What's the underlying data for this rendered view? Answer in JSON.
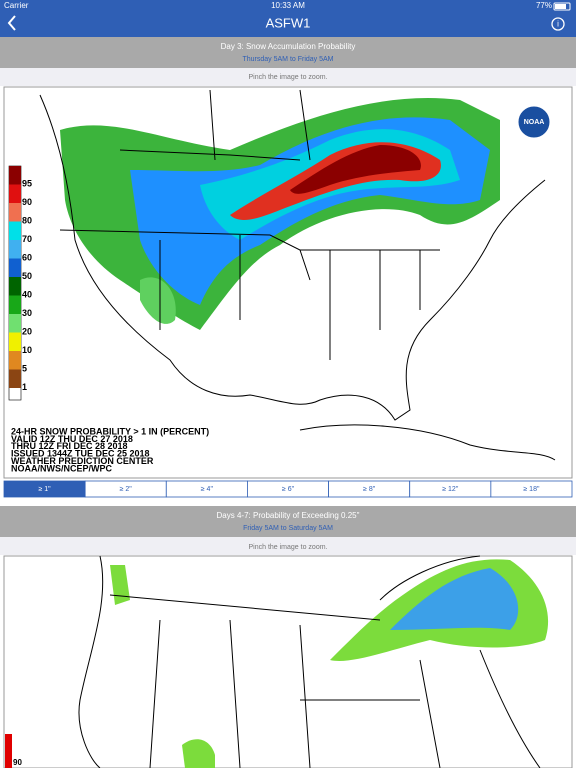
{
  "status_bar": {
    "carrier": "Carrier",
    "time": "10:33 AM",
    "battery": "77%"
  },
  "nav": {
    "title": "ASFW1"
  },
  "sections": [
    {
      "title": "Day 3: Snow Accumulation Probability",
      "subtitle": "Thursday 5AM to Friday 5AM",
      "hint": "Pinch the image to zoom.",
      "legend": [
        "95",
        "90",
        "80",
        "70",
        "60",
        "50",
        "40",
        "30",
        "20",
        "10",
        "5",
        "1"
      ],
      "map_text": [
        "24-HR SNOW PROBABILITY > 1 IN (PERCENT)",
        "VALID 12Z THU DEC 27 2018",
        "THRU 12Z FRI DEC 28 2018",
        "ISSUED 1344Z TUE DEC 25 2018",
        "WEATHER PREDICTION CENTER",
        "NOAA/NWS/NCEP/WPC"
      ],
      "segments": [
        "≥ 1\"",
        "≥ 2\"",
        "≥ 4\"",
        "≥ 6\"",
        "≥ 8\"",
        "≥ 12\"",
        "≥ 18\""
      ],
      "logo": "NOAA"
    },
    {
      "title": "Days 4-7: Probability of Exceeding 0.25\"",
      "subtitle": "Friday 5AM to Saturday 5AM",
      "hint": "Pinch the image to zoom.",
      "legend": [
        "90"
      ]
    }
  ]
}
